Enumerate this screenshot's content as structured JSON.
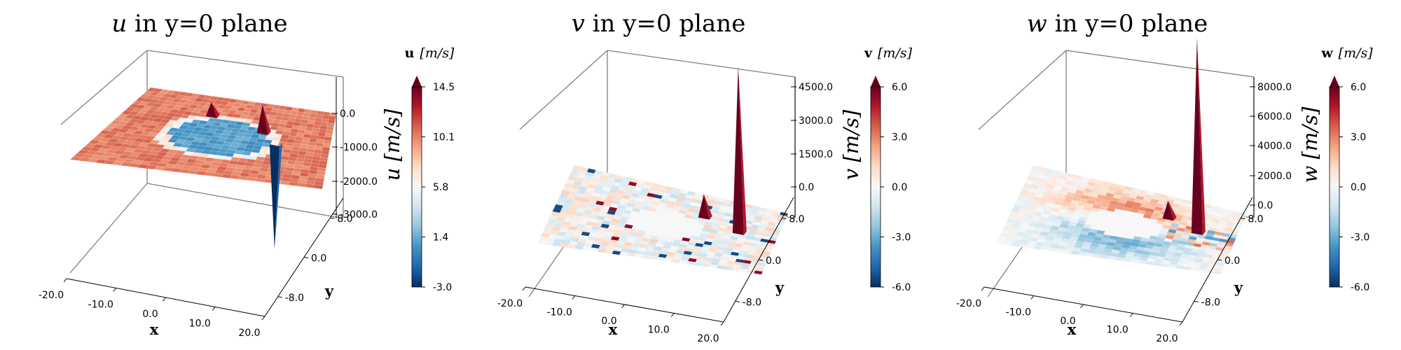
{
  "chart_data": [
    {
      "type": "surface3d",
      "title": {
        "sym": "u",
        "rest": " in y=0 plane"
      },
      "xlabel": "x",
      "ylabel": "y",
      "x_ticks": [
        "-20.0",
        "-10.0",
        "0.0",
        "10.0",
        "20.0"
      ],
      "y_ticks": [
        "-8.0",
        "0.0",
        "8.0"
      ],
      "z_ticks": [
        "0.0",
        "-1000.0",
        "-2000.0",
        "-3000.0"
      ],
      "colorbar": {
        "title_bold": "u",
        "title_unit": "[m/s]",
        "label": "u [m/s]",
        "ticks": [
          "14.5",
          "10.1",
          "5.8",
          "1.4",
          "-3.0"
        ],
        "range": [
          -3.0,
          14.5
        ]
      },
      "field": "u",
      "spikes": [
        {
          "x": 10,
          "y": 0,
          "z": -3000,
          "dir": "down"
        },
        {
          "x": 7,
          "y": 2,
          "z": 600,
          "dir": "up"
        },
        {
          "x": -4,
          "y": 4,
          "z": 300,
          "dir": "up"
        }
      ]
    },
    {
      "type": "surface3d",
      "title": {
        "sym": "v",
        "rest": " in y=0 plane"
      },
      "xlabel": "x",
      "ylabel": "y",
      "x_ticks": [
        "-20.0",
        "-10.0",
        "0.0",
        "10.0",
        "20.0"
      ],
      "y_ticks": [
        "-8.0",
        "0.0",
        "8.0"
      ],
      "z_ticks": [
        "4500.0",
        "3000.0",
        "1500.0",
        "0.0"
      ],
      "colorbar": {
        "title_bold": "v",
        "title_unit": "[m/s]",
        "label": "v [m/s]",
        "ticks": [
          "6.0",
          "3.0",
          "0.0",
          "-3.0",
          "-6.0"
        ],
        "range": [
          -6.0,
          6.0
        ]
      },
      "field": "v",
      "spikes": [
        {
          "x": 13,
          "y": 1,
          "z": 4300,
          "dir": "up"
        },
        {
          "x": 6,
          "y": 3,
          "z": 600,
          "dir": "up"
        }
      ]
    },
    {
      "type": "surface3d",
      "title": {
        "sym": "w",
        "rest": " in y=0 plane"
      },
      "xlabel": "x",
      "ylabel": "y",
      "x_ticks": [
        "-20.0",
        "-10.0",
        "0.0",
        "10.0",
        "20.0"
      ],
      "y_ticks": [
        "-8.0",
        "0.0",
        "8.0"
      ],
      "z_ticks": [
        "8000.0",
        "6000.0",
        "4000.0",
        "2000.0",
        "0.0"
      ],
      "colorbar": {
        "title_bold": "w",
        "title_unit": "[m/s]",
        "label": "w [m/s]",
        "ticks": [
          "6.0",
          "3.0",
          "0.0",
          "-3.0",
          "-6.0"
        ],
        "range": [
          -6.0,
          6.0
        ]
      },
      "field": "w",
      "spikes": [
        {
          "x": 13,
          "y": 1,
          "z": 7700,
          "dir": "up"
        },
        {
          "x": 7,
          "y": 3,
          "z": 700,
          "dir": "up"
        }
      ]
    }
  ],
  "colors": {
    "dark_red": "#67001f",
    "red": "#b2182b",
    "light_red": "#f4a582",
    "white": "#f7f7f7",
    "light_blue": "#92c5de",
    "blue": "#2166ac",
    "dark_blue": "#053061",
    "axis_grey": "#808080"
  }
}
